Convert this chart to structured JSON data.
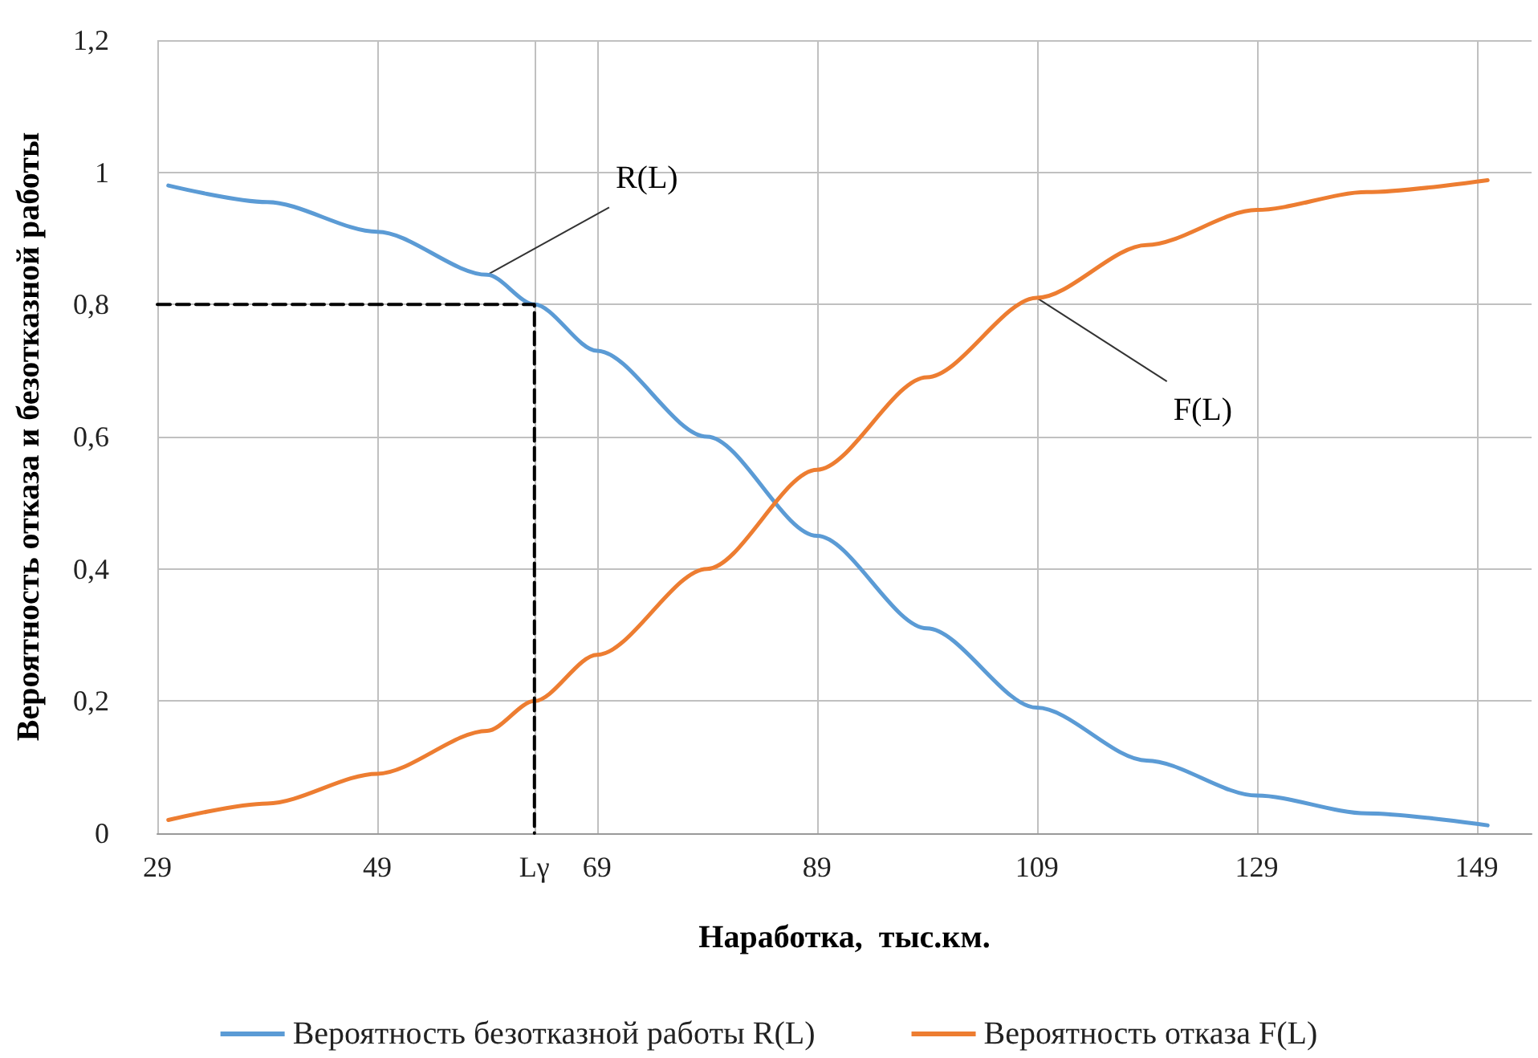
{
  "chart_data": {
    "type": "line",
    "xlabel": "Наработка,  тыс.км.",
    "ylabel": "Вероятность отказа и безотказной работы",
    "xlim": [
      29,
      154
    ],
    "xticks": [
      29,
      49,
      {
        "value": 63.3,
        "label": "Lγ"
      },
      69,
      89,
      109,
      129,
      149
    ],
    "ylim": [
      0,
      1.2
    ],
    "yticks": [
      0,
      {
        "value": 0.2,
        "label": "0,2"
      },
      {
        "value": 0.4,
        "label": "0,4"
      },
      {
        "value": 0.6,
        "label": "0,6"
      },
      {
        "value": 0.8,
        "label": "0,8"
      },
      1,
      {
        "value": 1.2,
        "label": "1,2"
      }
    ],
    "series": [
      {
        "name": "Вероятность безотказной работы R(L)",
        "color": "#5b9bd5",
        "x": [
          30,
          39,
          49,
          59,
          63.3,
          69,
          79,
          89,
          99,
          109,
          119,
          129,
          139,
          150
        ],
        "values": [
          0.98,
          0.955,
          0.91,
          0.845,
          0.8,
          0.73,
          0.6,
          0.45,
          0.31,
          0.19,
          0.11,
          0.057,
          0.03,
          0.012
        ]
      },
      {
        "name": "Вероятность отказа F(L)",
        "color": "#ed7d31",
        "x": [
          30,
          39,
          49,
          59,
          63.3,
          69,
          79,
          89,
          99,
          109,
          119,
          129,
          139,
          150
        ],
        "values": [
          0.02,
          0.045,
          0.09,
          0.155,
          0.2,
          0.27,
          0.4,
          0.55,
          0.69,
          0.81,
          0.89,
          0.943,
          0.97,
          0.988
        ]
      },
      {
        "color": "#000000",
        "line_style": "dashed",
        "x": [
          29,
          63.3,
          63.3
        ],
        "values": [
          0.8,
          0.8,
          0
        ]
      }
    ],
    "annotations": [
      {
        "text": "R(L)",
        "x": 59,
        "y": 0.845
      },
      {
        "text": "F(L)",
        "x": 109,
        "y": 0.81
      }
    ],
    "grid": true,
    "legend": "bottom",
    "marker": "none",
    "line_style": "solid"
  }
}
